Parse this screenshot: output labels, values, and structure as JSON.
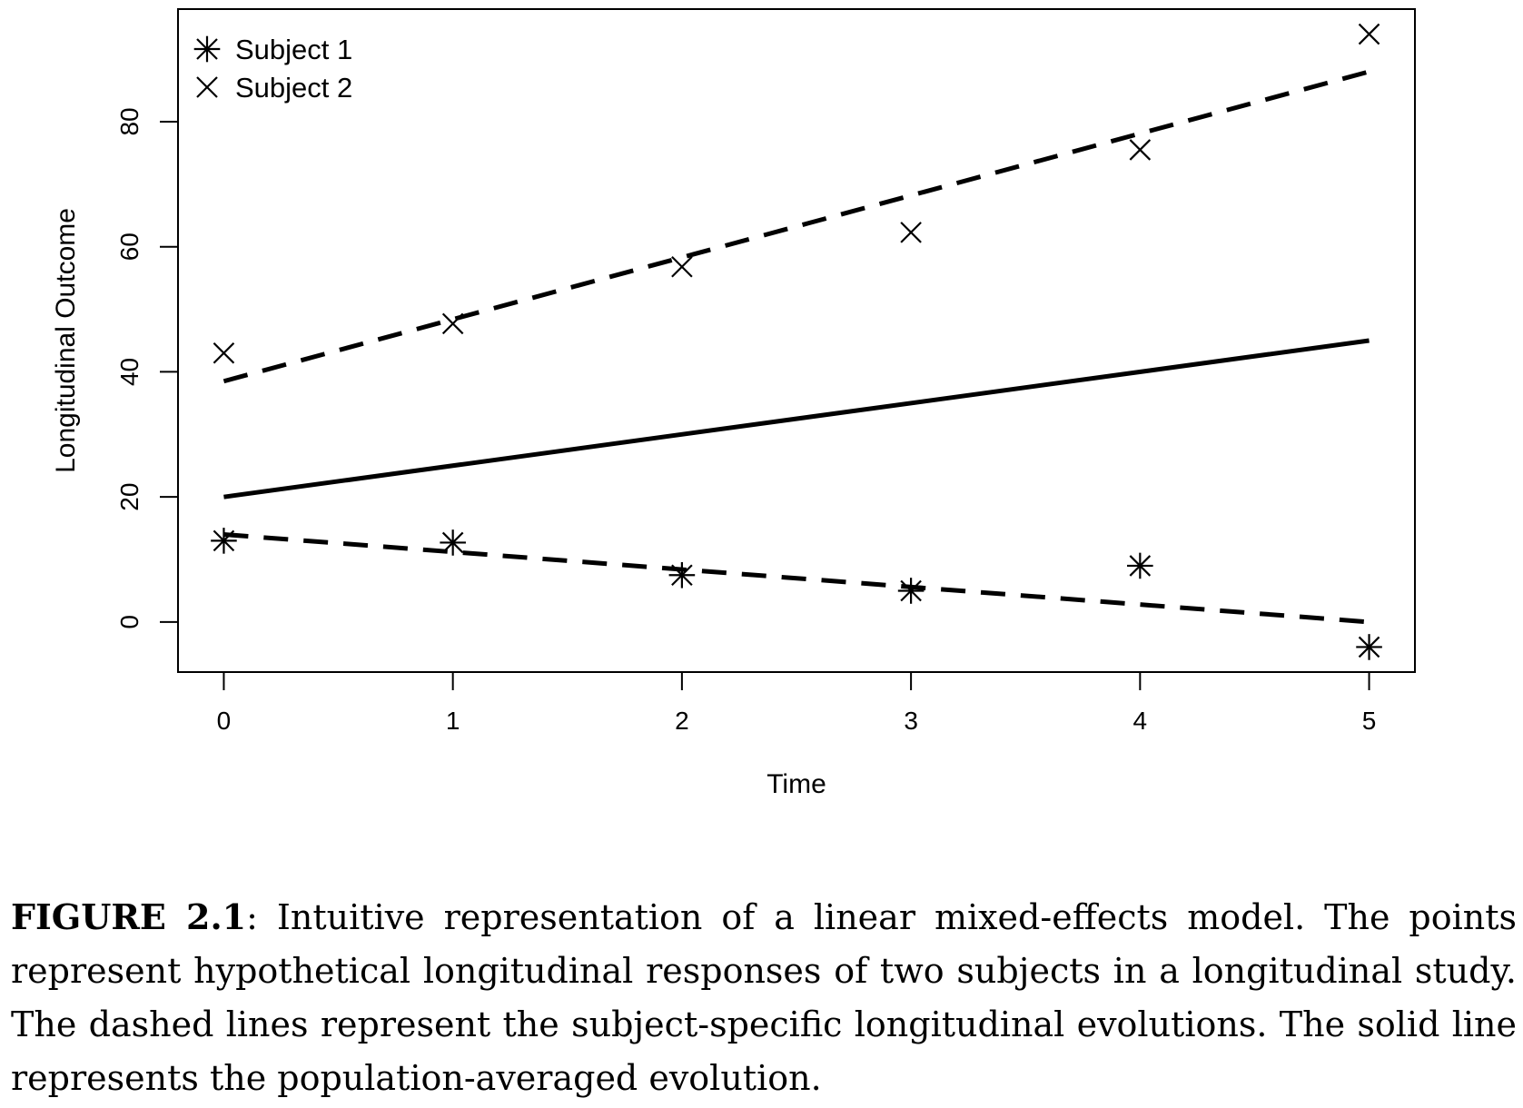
{
  "chart_data": {
    "type": "line",
    "xlabel": "Time",
    "ylabel": "Longitudinal Outcome",
    "xlim": [
      -0.2,
      5.2
    ],
    "ylim": [
      -8,
      98
    ],
    "xticks": [
      0,
      1,
      2,
      3,
      4,
      5
    ],
    "yticks": [
      0,
      20,
      40,
      60,
      80
    ],
    "grid": false,
    "legend_position": "top-left",
    "legend": [
      {
        "label": "Subject 1",
        "marker": "asterisk"
      },
      {
        "label": "Subject 2",
        "marker": "cross"
      }
    ],
    "points": [
      {
        "name": "Subject 1",
        "marker": "asterisk",
        "x": [
          0,
          1,
          2,
          3,
          4,
          5
        ],
        "y": [
          13,
          12.7,
          7.5,
          5,
          9,
          -4
        ]
      },
      {
        "name": "Subject 2",
        "marker": "cross",
        "x": [
          0,
          1,
          2,
          3,
          4,
          5
        ],
        "y": [
          43,
          47.7,
          56.8,
          62.3,
          75.5,
          94
        ]
      }
    ],
    "lines": [
      {
        "style": "dashed",
        "x": [
          0,
          5
        ],
        "y": [
          14,
          0
        ]
      },
      {
        "style": "dashed",
        "x": [
          0,
          5
        ],
        "y": [
          38.5,
          88
        ]
      },
      {
        "style": "solid",
        "x": [
          0,
          5
        ],
        "y": [
          20,
          45
        ]
      }
    ]
  },
  "caption": {
    "label": "FIGURE 2.1",
    "text": ": Intuitive representation of a linear mixed-effects model. The points represent hypothetical longitudinal responses of two subjects in a longitudinal study. The dashed lines represent the subject-specific longitudinal evolutions. The solid line represents the population-averaged evolution."
  }
}
